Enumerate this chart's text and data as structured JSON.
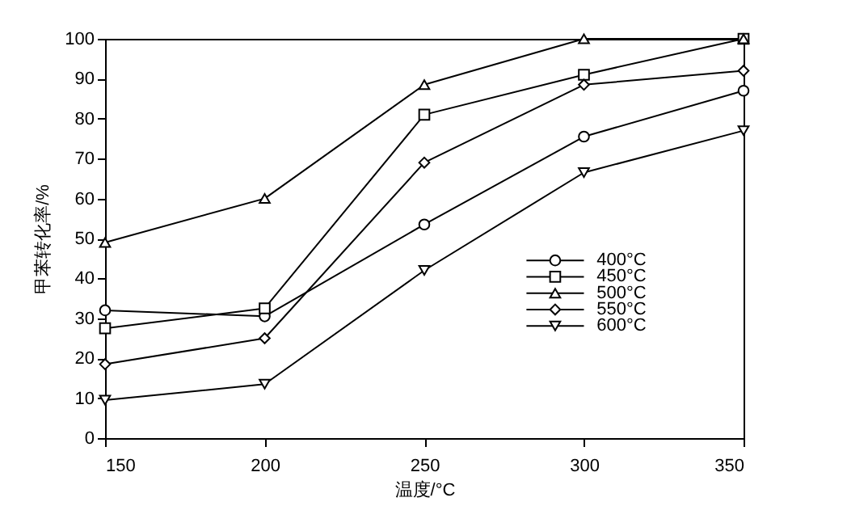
{
  "chart_data": {
    "type": "line",
    "xlabel": "温度/°C",
    "ylabel": "甲苯转化率/%",
    "x": [
      150,
      200,
      250,
      300,
      350
    ],
    "xlim": [
      150,
      350
    ],
    "xticks": [
      150,
      200,
      250,
      300,
      350
    ],
    "ylim": [
      0,
      100
    ],
    "yticks": [
      0,
      10,
      20,
      30,
      40,
      50,
      60,
      70,
      80,
      90,
      100
    ],
    "grid": false,
    "legend": "right",
    "line_style": "solid",
    "series": [
      {
        "name": "400°C",
        "color": "#000000",
        "marker": "circle",
        "values": [
          32,
          30.5,
          53.5,
          75.5,
          87
        ]
      },
      {
        "name": "450°C",
        "color": "#000000",
        "marker": "square",
        "values": [
          27.5,
          32.5,
          81,
          91,
          100
        ]
      },
      {
        "name": "500°C",
        "color": "#000000",
        "marker": "triangle",
        "values": [
          49,
          60,
          88.5,
          100,
          100
        ]
      },
      {
        "name": "550°C",
        "color": "#000000",
        "marker": "diamond",
        "values": [
          18.5,
          25,
          69,
          88.5,
          92
        ]
      },
      {
        "name": "600°C",
        "color": "#000000",
        "marker": "triangle-down",
        "values": [
          9.5,
          13.5,
          42,
          66.5,
          77
        ]
      }
    ]
  }
}
